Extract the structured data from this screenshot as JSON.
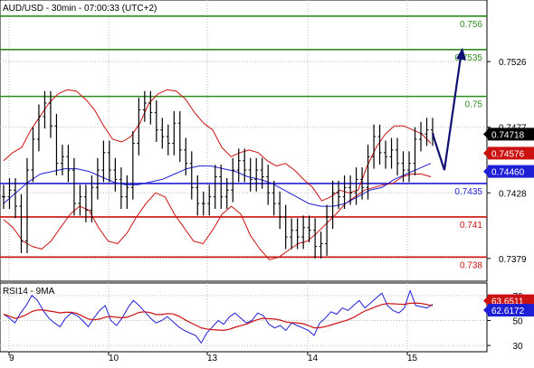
{
  "chart_data": [
    {
      "type": "line",
      "title": "AUD/USD - 30min - 07:00:33 (UTC+2)",
      "x_ticks": [
        "9",
        "10",
        "13",
        "14",
        "15"
      ],
      "y_ticks": [
        0.7526,
        0.7477,
        0.7428,
        0.7379
      ],
      "ylim": [
        0.7362,
        0.7572
      ],
      "grid": true,
      "horizontal_levels": [
        {
          "value": 0.756,
          "label": "0.756",
          "color": "#2e8b1f"
        },
        {
          "value": 0.7535,
          "label": "0.7535",
          "color": "#2e8b1f"
        },
        {
          "value": 0.75,
          "label": "0.75",
          "color": "#2e8b1f"
        },
        {
          "value": 0.7435,
          "label": "0.7435",
          "color": "#1f1fd6"
        },
        {
          "value": 0.741,
          "label": "0.741",
          "color": "#cc1111"
        },
        {
          "value": 0.738,
          "label": "0.738",
          "color": "#cc1111"
        }
      ],
      "price_tags": [
        {
          "value": 0.74718,
          "label": "0.74718",
          "bg": "#000000",
          "fg": "#ffffff"
        },
        {
          "value": 0.74576,
          "label": "0.74576",
          "bg": "#cc1111",
          "fg": "#ffffff"
        },
        {
          "value": 0.7446,
          "label": "0.74460",
          "bg": "#1f1fd6",
          "fg": "#ffffff"
        }
      ],
      "price_series": [
        0.7425,
        0.743,
        0.7418,
        0.7392,
        0.7445,
        0.7468,
        0.7485,
        0.7495,
        0.7478,
        0.745,
        0.7455,
        0.7445,
        0.742,
        0.7425,
        0.7415,
        0.7432,
        0.7445,
        0.7458,
        0.7445,
        0.7438,
        0.7425,
        0.7432,
        0.7465,
        0.749,
        0.7495,
        0.7488,
        0.7475,
        0.747,
        0.7465,
        0.748,
        0.746,
        0.745,
        0.7432,
        0.742,
        0.742,
        0.7425,
        0.744,
        0.7425,
        0.743,
        0.7445,
        0.7452,
        0.7445,
        0.7438,
        0.7445,
        0.744,
        0.7428,
        0.742,
        0.741,
        0.7395,
        0.74,
        0.7395,
        0.7402,
        0.74,
        0.7388,
        0.739,
        0.741,
        0.7428,
        0.7425,
        0.7432,
        0.7428,
        0.7438,
        0.7432,
        0.7455,
        0.747,
        0.7458,
        0.7455,
        0.746,
        0.745,
        0.7445,
        0.745,
        0.7468,
        0.7472,
        0.7475,
        0.7472
      ],
      "upper_band": [
        0.7452,
        0.7458,
        0.7462,
        0.7475,
        0.7485,
        0.7495,
        0.7502,
        0.7505,
        0.7504,
        0.7498,
        0.749,
        0.7478,
        0.7468,
        0.7466,
        0.747,
        0.748,
        0.7495,
        0.7502,
        0.7505,
        0.7504,
        0.7498,
        0.7488,
        0.748,
        0.7475,
        0.7462,
        0.7455,
        0.7458,
        0.746,
        0.7458,
        0.7452,
        0.7448,
        0.745,
        0.7445,
        0.7438,
        0.7432,
        0.7422,
        0.7425,
        0.743,
        0.7428,
        0.743,
        0.7448,
        0.7462,
        0.7472,
        0.7478,
        0.7478,
        0.7475,
        0.7472,
        0.7465
      ],
      "lower_band": [
        0.7408,
        0.7402,
        0.7392,
        0.7388,
        0.7386,
        0.7392,
        0.7402,
        0.7412,
        0.7418,
        0.7415,
        0.7402,
        0.7392,
        0.739,
        0.7398,
        0.741,
        0.742,
        0.7428,
        0.7425,
        0.7412,
        0.7402,
        0.7392,
        0.739,
        0.74,
        0.7412,
        0.7418,
        0.7412,
        0.7396,
        0.7386,
        0.7378,
        0.738,
        0.7385,
        0.739,
        0.7392,
        0.7398,
        0.7405,
        0.7412,
        0.742,
        0.7425,
        0.743,
        0.7432,
        0.7434,
        0.7435,
        0.744,
        0.7442,
        0.7442,
        0.744
      ],
      "ma_line": [
        0.742,
        0.7428,
        0.7436,
        0.7442,
        0.7444,
        0.7446,
        0.7446,
        0.7444,
        0.744,
        0.7436,
        0.7434,
        0.7434,
        0.7436,
        0.7438,
        0.7442,
        0.7446,
        0.7448,
        0.7448,
        0.7446,
        0.7444,
        0.744,
        0.7438,
        0.7435,
        0.743,
        0.7425,
        0.742,
        0.7418,
        0.7418,
        0.742,
        0.7425,
        0.743,
        0.7432,
        0.7438,
        0.7442,
        0.7446,
        0.745
      ],
      "projection": [
        [
          0.7445,
          0.7535
        ]
      ],
      "rsi": {
        "label": "RSI14 - 9MA",
        "y_ticks": [
          70,
          50,
          30
        ],
        "ylim": [
          25,
          80
        ],
        "tags": [
          {
            "value": 63.6511,
            "label": "63.6511",
            "bg": "#cc1111",
            "fg": "#ffffff"
          },
          {
            "value": 62.6172,
            "label": "62.6172",
            "bg": "#1f1fd6",
            "fg": "#ffffff"
          }
        ],
        "rsi_series": [
          55,
          52,
          48,
          56,
          62,
          70,
          66,
          58,
          52,
          48,
          45,
          52,
          56,
          54,
          50,
          45,
          52,
          58,
          62,
          50,
          46,
          52,
          60,
          66,
          62,
          57,
          52,
          48,
          50,
          53,
          49,
          45,
          42,
          40,
          38,
          32,
          40,
          45,
          50,
          47,
          53,
          56,
          52,
          48,
          50,
          56,
          54,
          47,
          44,
          46,
          42,
          48,
          46,
          44,
          42,
          38,
          48,
          52,
          57,
          55,
          60,
          58,
          62,
          66,
          60,
          64,
          68,
          72,
          62,
          58,
          56,
          60,
          74,
          62,
          61,
          60,
          63
        ]
      }
    }
  ]
}
